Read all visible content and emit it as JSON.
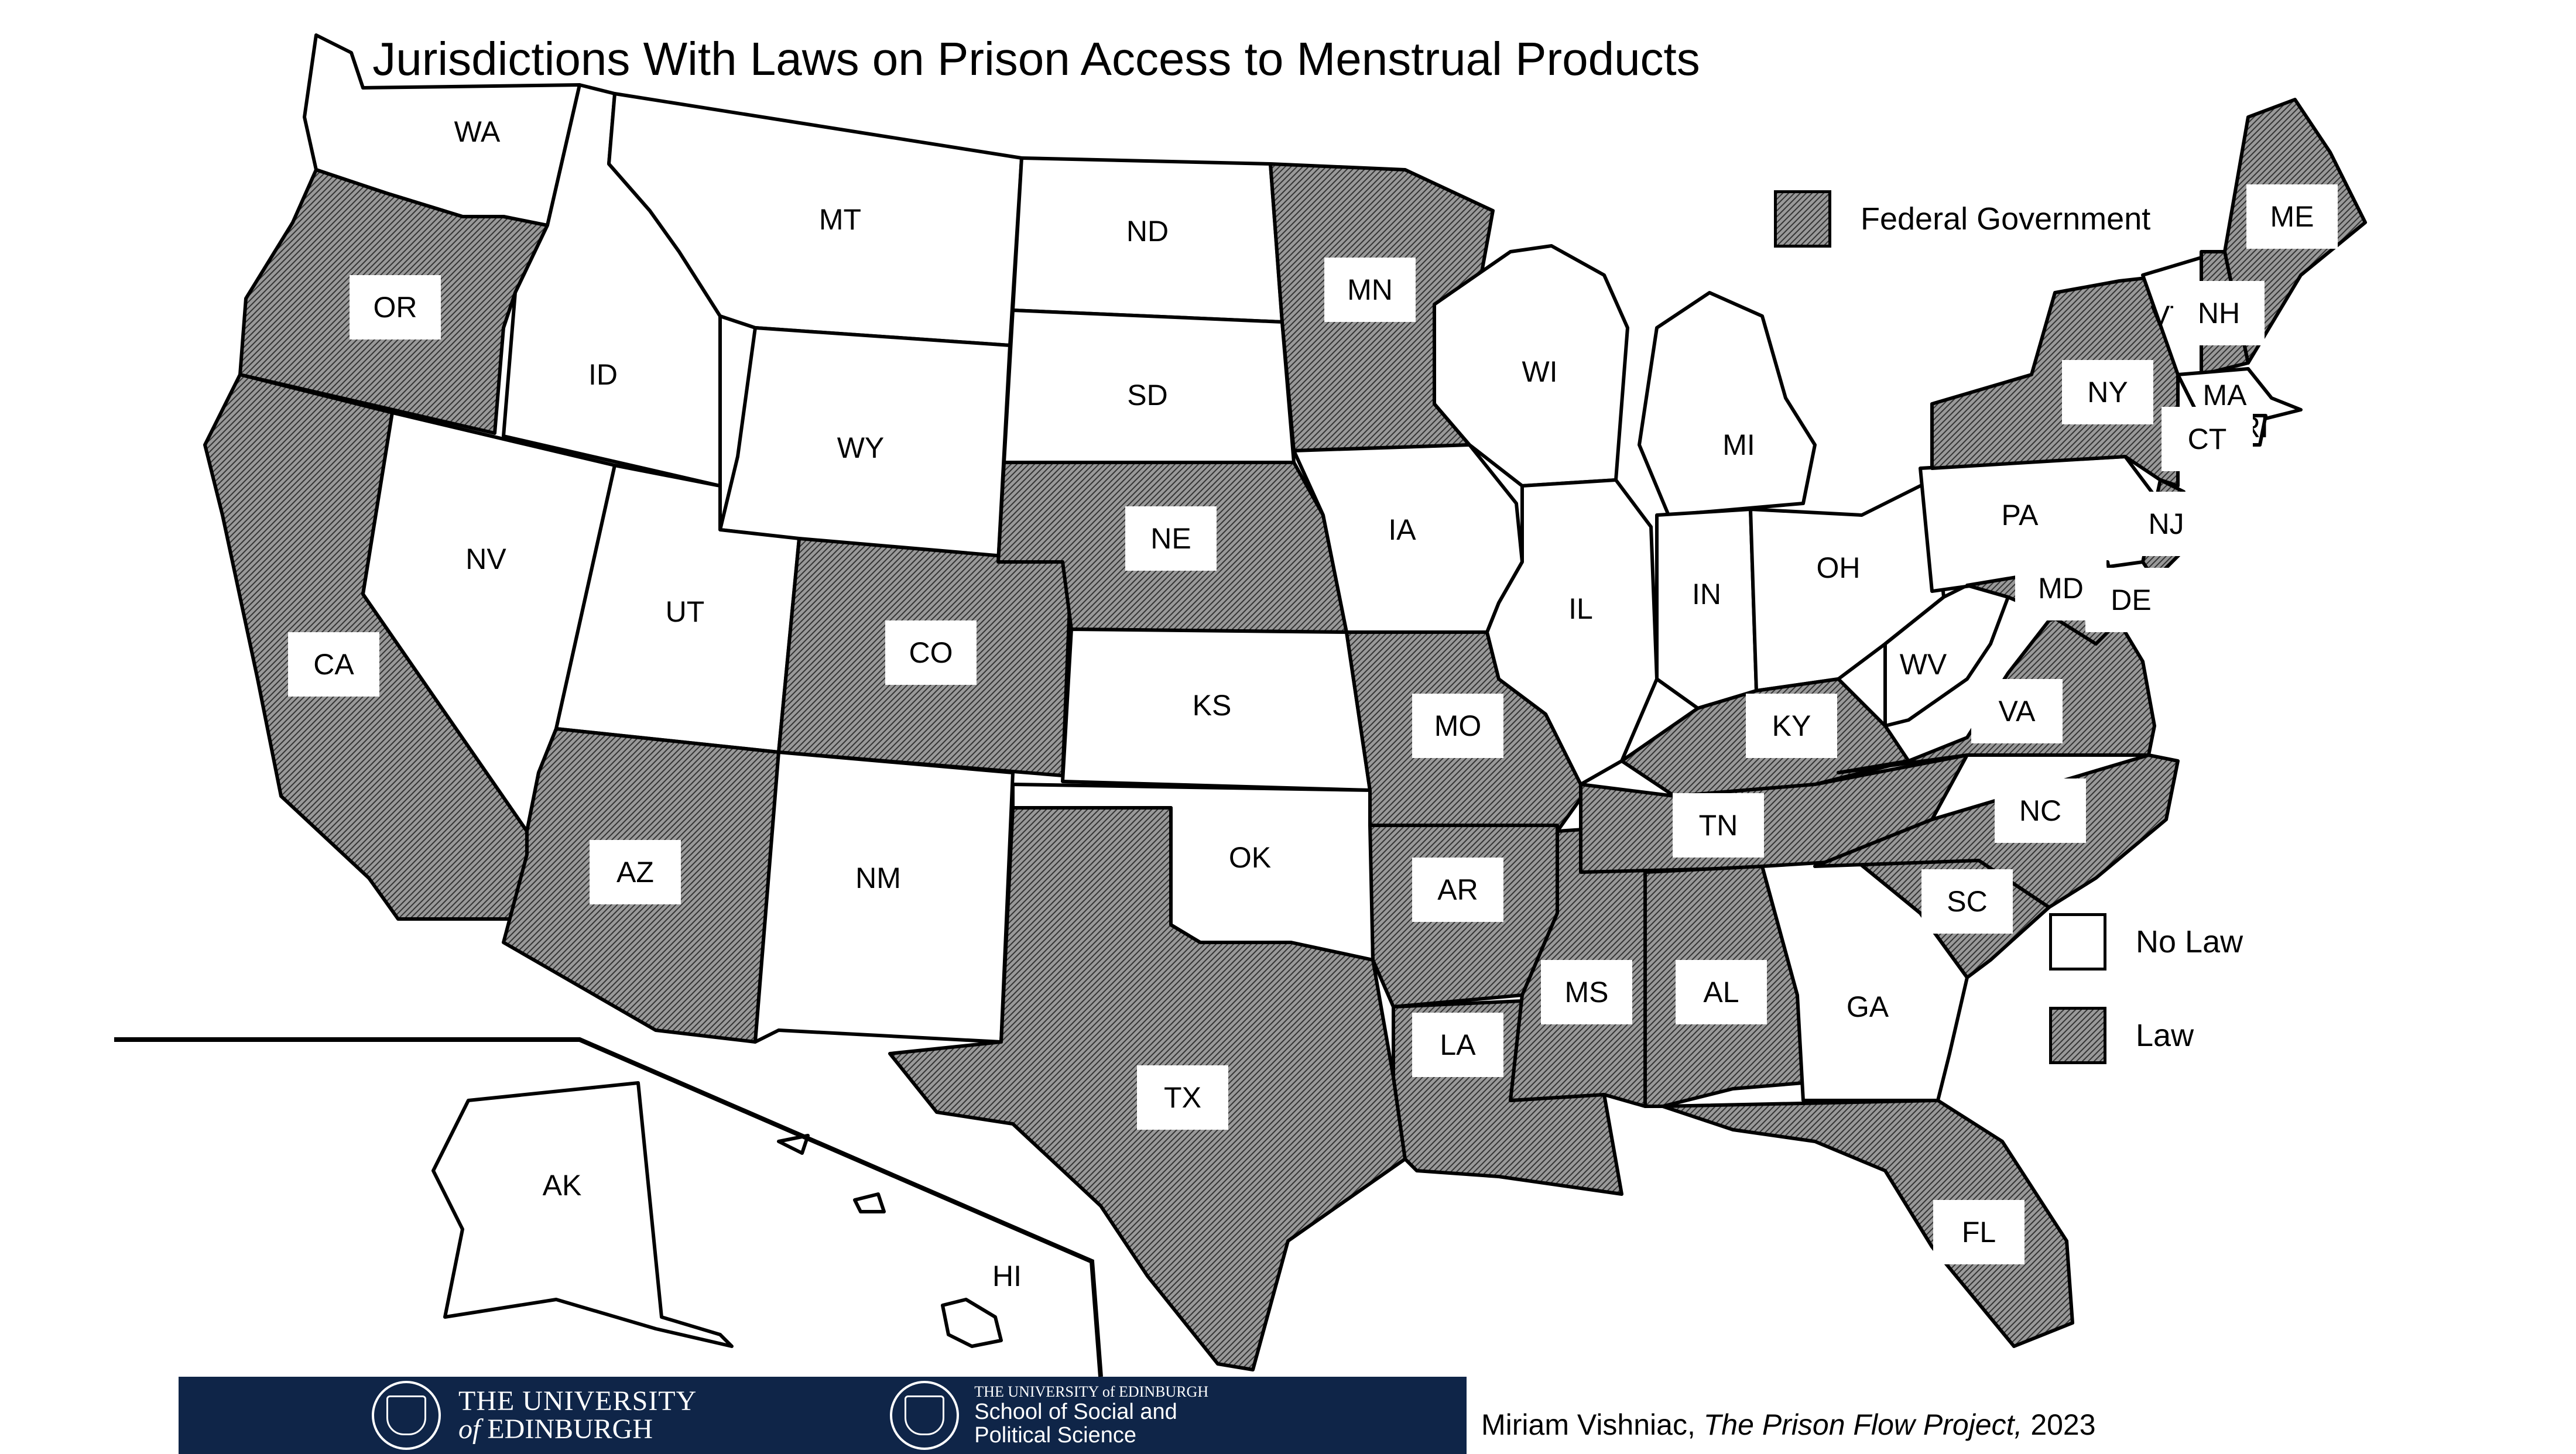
{
  "title": "Jurisdictions With Laws on Prison Access to Menstrual Products",
  "federal": {
    "label": "Federal Government",
    "status": "law"
  },
  "legend": [
    {
      "label": "No Law",
      "status": "no-law"
    },
    {
      "label": "Law",
      "status": "law"
    }
  ],
  "colors": {
    "law": "#8c8c8c",
    "no_law": "#ffffff",
    "outline": "#000000",
    "banner": "#0f2548"
  },
  "states": [
    {
      "abbr": "WA",
      "status": "no-law"
    },
    {
      "abbr": "OR",
      "status": "law"
    },
    {
      "abbr": "CA",
      "status": "law"
    },
    {
      "abbr": "ID",
      "status": "no-law"
    },
    {
      "abbr": "NV",
      "status": "no-law"
    },
    {
      "abbr": "MT",
      "status": "no-law"
    },
    {
      "abbr": "WY",
      "status": "no-law"
    },
    {
      "abbr": "UT",
      "status": "no-law"
    },
    {
      "abbr": "AZ",
      "status": "law"
    },
    {
      "abbr": "CO",
      "status": "law"
    },
    {
      "abbr": "NM",
      "status": "no-law"
    },
    {
      "abbr": "ND",
      "status": "no-law"
    },
    {
      "abbr": "SD",
      "status": "no-law"
    },
    {
      "abbr": "NE",
      "status": "law"
    },
    {
      "abbr": "KS",
      "status": "no-law"
    },
    {
      "abbr": "OK",
      "status": "no-law"
    },
    {
      "abbr": "TX",
      "status": "law"
    },
    {
      "abbr": "MN",
      "status": "law"
    },
    {
      "abbr": "IA",
      "status": "no-law"
    },
    {
      "abbr": "MO",
      "status": "law"
    },
    {
      "abbr": "AR",
      "status": "law"
    },
    {
      "abbr": "LA",
      "status": "law"
    },
    {
      "abbr": "WI",
      "status": "no-law"
    },
    {
      "abbr": "IL",
      "status": "no-law"
    },
    {
      "abbr": "MS",
      "status": "law"
    },
    {
      "abbr": "MI",
      "status": "no-law"
    },
    {
      "abbr": "IN",
      "status": "no-law"
    },
    {
      "abbr": "OH",
      "status": "no-law"
    },
    {
      "abbr": "KY",
      "status": "law"
    },
    {
      "abbr": "TN",
      "status": "law"
    },
    {
      "abbr": "AL",
      "status": "law"
    },
    {
      "abbr": "GA",
      "status": "no-law"
    },
    {
      "abbr": "FL",
      "status": "law"
    },
    {
      "abbr": "SC",
      "status": "law"
    },
    {
      "abbr": "NC",
      "status": "law"
    },
    {
      "abbr": "VA",
      "status": "law"
    },
    {
      "abbr": "WV",
      "status": "no-law"
    },
    {
      "abbr": "PA",
      "status": "no-law"
    },
    {
      "abbr": "NY",
      "status": "law"
    },
    {
      "abbr": "VT",
      "status": "no-law"
    },
    {
      "abbr": "NH",
      "status": "law"
    },
    {
      "abbr": "ME",
      "status": "law"
    },
    {
      "abbr": "MA",
      "status": "no-law"
    },
    {
      "abbr": "RI",
      "status": "no-law"
    },
    {
      "abbr": "CT",
      "status": "law"
    },
    {
      "abbr": "NJ",
      "status": "law"
    },
    {
      "abbr": "DE",
      "status": "law"
    },
    {
      "abbr": "MD",
      "status": "law"
    },
    {
      "abbr": "AK",
      "status": "no-law"
    },
    {
      "abbr": "HI",
      "status": "no-law"
    }
  ],
  "footer": {
    "uoe_line1": "THE UNIVERSITY",
    "uoe_line2_of": "of",
    "uoe_line2": "EDINBURGH",
    "sss_small": "THE UNIVERSITY of EDINBURGH",
    "sss_line1": "School of Social and",
    "sss_line2": "Political Science"
  },
  "credit": {
    "author": "Miriam Vishniac,",
    "work": "The Prison Flow Project,",
    "year": "2023"
  }
}
